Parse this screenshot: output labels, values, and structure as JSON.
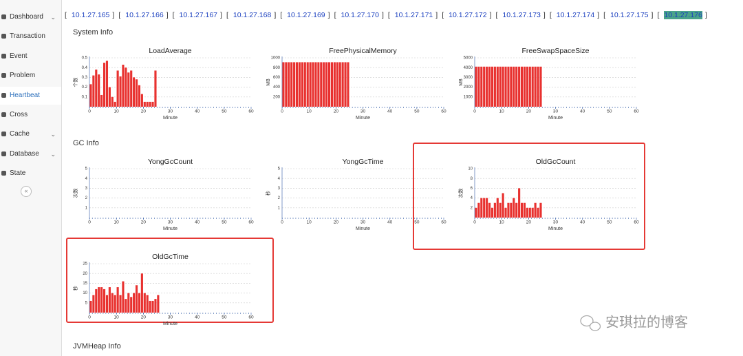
{
  "sidebar": {
    "items": [
      {
        "label": "Dashboard",
        "expandable": true
      },
      {
        "label": "Transaction"
      },
      {
        "label": "Event"
      },
      {
        "label": "Problem"
      },
      {
        "label": "Heartbeat",
        "active": true
      },
      {
        "label": "Cross"
      },
      {
        "label": "Cache",
        "expandable": true
      },
      {
        "label": "Database",
        "expandable": true
      },
      {
        "label": "State"
      }
    ],
    "collapse": "«"
  },
  "hosts": {
    "bracket_open": "[",
    "bracket_close": "]",
    "items": [
      {
        "label": "10.1.27.165"
      },
      {
        "label": "10.1.27.166"
      },
      {
        "label": "10.1.27.167"
      },
      {
        "label": "10.1.27.168"
      },
      {
        "label": "10.1.27.169"
      },
      {
        "label": "10.1.27.170"
      },
      {
        "label": "10.1.27.171"
      },
      {
        "label": "10.1.27.172"
      },
      {
        "label": "10.1.27.173"
      },
      {
        "label": "10.1.27.174"
      },
      {
        "label": "10.1.27.175"
      },
      {
        "label": "10.1.27.176",
        "selected": true
      }
    ]
  },
  "bar_color": "#e8312f",
  "sections": [
    {
      "title": "System Info",
      "charts": [
        {
          "type": "bar",
          "title": "LoadAverage",
          "ylabel": "个数",
          "xlabel": "Minute",
          "xlim": [
            0,
            60
          ],
          "xticks": [
            0,
            10,
            20,
            30,
            40,
            50,
            60
          ],
          "ylim": [
            0,
            0.5
          ],
          "yticks": [
            0.1,
            0.2,
            0.3,
            0.4,
            0.5
          ],
          "values": [
            0.23,
            0.32,
            0.38,
            0.33,
            0.12,
            0.45,
            0.47,
            0.2,
            0.1,
            0.05,
            0.37,
            0.31,
            0.43,
            0.4,
            0.35,
            0.37,
            0.3,
            0.28,
            0.22,
            0.13,
            0.05,
            0.05,
            0.05,
            0.05,
            0.37
          ]
        },
        {
          "type": "bar",
          "title": "FreePhysicalMemory",
          "ylabel": "MB",
          "xlabel": "Minute",
          "xlim": [
            0,
            60
          ],
          "xticks": [
            0,
            10,
            20,
            30,
            40,
            50,
            60
          ],
          "ylim": [
            0,
            1000
          ],
          "yticks": [
            200,
            400,
            600,
            800,
            1000
          ],
          "values": [
            910,
            910,
            910,
            910,
            910,
            910,
            910,
            910,
            910,
            910,
            910,
            910,
            910,
            910,
            910,
            910,
            910,
            910,
            910,
            910,
            910,
            910,
            910,
            910,
            910
          ]
        },
        {
          "type": "bar",
          "title": "FreeSwapSpaceSize",
          "ylabel": "MB",
          "xlabel": "Minute",
          "xlim": [
            0,
            60
          ],
          "xticks": [
            0,
            10,
            20,
            30,
            40,
            50,
            60
          ],
          "ylim": [
            0,
            5000
          ],
          "yticks": [
            1000,
            2000,
            3000,
            4000,
            5000
          ],
          "values": [
            4100,
            4100,
            4100,
            4100,
            4100,
            4100,
            4100,
            4100,
            4100,
            4100,
            4100,
            4100,
            4100,
            4100,
            4100,
            4100,
            4100,
            4100,
            4100,
            4100,
            4100,
            4100,
            4100,
            4100,
            4100
          ]
        }
      ]
    },
    {
      "title": "GC Info",
      "charts": [
        {
          "type": "bar",
          "title": "YongGcCount",
          "ylabel": "次数",
          "xlabel": "Minute",
          "xlim": [
            0,
            60
          ],
          "xticks": [
            0,
            10,
            20,
            30,
            40,
            50,
            60
          ],
          "ylim": [
            0,
            5
          ],
          "yticks": [
            1,
            2,
            3,
            4,
            5
          ],
          "values": []
        },
        {
          "type": "bar",
          "title": "YongGcTime",
          "ylabel": "秒",
          "xlabel": "Minute",
          "xlim": [
            0,
            60
          ],
          "xticks": [
            0,
            10,
            20,
            30,
            40,
            50,
            60
          ],
          "ylim": [
            0,
            5
          ],
          "yticks": [
            1,
            2,
            3,
            4,
            5
          ],
          "values": []
        },
        {
          "type": "bar",
          "title": "OldGcCount",
          "ylabel": "次数",
          "xlabel": "Minute",
          "xlim": [
            0,
            60
          ],
          "xticks": [
            0,
            10,
            20,
            30,
            40,
            50,
            60
          ],
          "ylim": [
            0,
            10
          ],
          "yticks": [
            2,
            4,
            6,
            8,
            10
          ],
          "highlighted": true,
          "values": [
            2,
            3,
            4,
            4,
            4,
            3,
            2,
            3,
            4,
            3,
            5,
            2,
            3,
            3,
            4,
            3,
            6,
            3,
            3,
            2,
            2,
            2,
            3,
            2,
            3
          ]
        },
        {
          "type": "bar",
          "title": "OldGcTime",
          "ylabel": "秒",
          "xlabel": "Minute",
          "xlim": [
            0,
            60
          ],
          "xticks": [
            0,
            10,
            20,
            30,
            40,
            50,
            60
          ],
          "ylim": [
            0,
            25
          ],
          "yticks": [
            5,
            10,
            15,
            20,
            25
          ],
          "highlighted": true,
          "values": [
            6,
            9,
            12,
            13,
            13,
            12,
            9,
            13,
            10,
            9,
            13,
            9,
            16,
            7,
            10,
            8,
            10,
            14,
            10,
            20,
            10,
            9,
            6,
            6,
            7,
            9
          ]
        }
      ]
    },
    {
      "title": "JVMHeap Info",
      "charts": []
    }
  ],
  "watermark": "安琪拉的博客"
}
